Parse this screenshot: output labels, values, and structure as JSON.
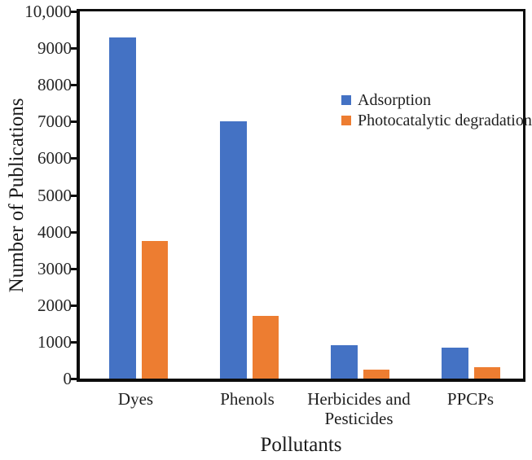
{
  "chart_data": {
    "type": "bar",
    "title": "",
    "categories": [
      "Dyes",
      "Phenols",
      "Herbicides and Pesticides",
      "PPCPs"
    ],
    "series": [
      {
        "name": "Adsorption",
        "color": "#4472C4",
        "values": [
          9300,
          7000,
          900,
          850
        ]
      },
      {
        "name": "Photocatalytic degradation",
        "color": "#ED7D31",
        "values": [
          3750,
          1700,
          250,
          300
        ]
      }
    ],
    "xlabel": "Pollutants",
    "ylabel": "Number of Publications",
    "ylim": [
      0,
      10000
    ],
    "ytick_step": 1000,
    "ytick_labels": [
      "0",
      "1000",
      "2000",
      "3000",
      "4000",
      "5000",
      "6000",
      "7000",
      "8000",
      "9000",
      "10,000"
    ],
    "grid": false,
    "legend_position": "inside-upper-right",
    "axis_color": "#0d0d0d",
    "background_color": "#ffffff"
  }
}
